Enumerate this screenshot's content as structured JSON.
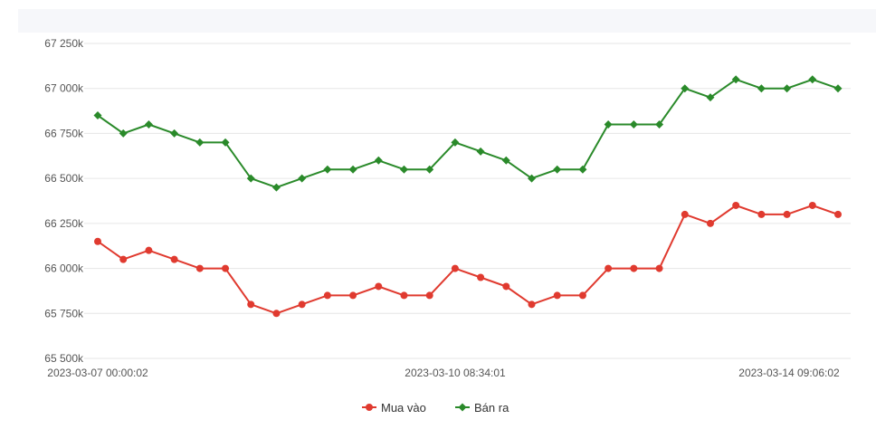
{
  "chart_data": {
    "type": "line",
    "x_tick_labels": [
      "2023-03-07 00:00:02",
      "2023-03-10 08:34:01",
      "2023-03-14 09:06:02"
    ],
    "y_tick_labels": [
      "67 250k",
      "67 000k",
      "66 750k",
      "66 500k",
      "66 250k",
      "66 000k",
      "65 750k",
      "65 500k"
    ],
    "y_ticks": [
      67250,
      67000,
      66750,
      66500,
      66250,
      66000,
      65750,
      65500
    ],
    "ylim": [
      65500,
      67250
    ],
    "grid": true,
    "legend_position": "bottom-center",
    "series": [
      {
        "name": "Mua vào",
        "color": "#e03a2f",
        "marker": "circle",
        "values": [
          66150,
          66050,
          66100,
          66050,
          66000,
          66000,
          65800,
          65750,
          65800,
          65850,
          65850,
          65900,
          65850,
          65850,
          66000,
          65950,
          65900,
          65800,
          65850,
          65850,
          66000,
          66000,
          66000,
          66300,
          66250,
          66350,
          66300,
          66300,
          66350,
          66300
        ]
      },
      {
        "name": "Bán ra",
        "color": "#2a8a2a",
        "marker": "diamond",
        "values": [
          66850,
          66750,
          66800,
          66750,
          66700,
          66700,
          66500,
          66450,
          66500,
          66550,
          66550,
          66600,
          66550,
          66550,
          66700,
          66650,
          66600,
          66500,
          66550,
          66550,
          66800,
          66800,
          66800,
          67000,
          66950,
          67050,
          67000,
          67000,
          67050,
          67000
        ]
      }
    ]
  }
}
